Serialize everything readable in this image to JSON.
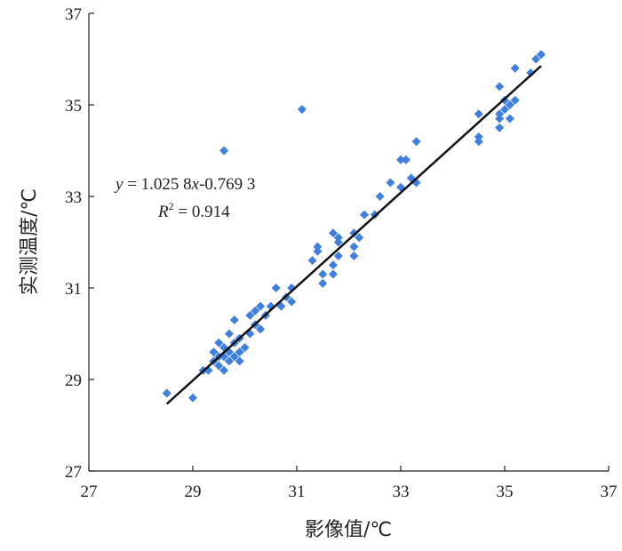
{
  "chart_data": {
    "type": "scatter",
    "xlabel": "影像值/℃",
    "ylabel": "实测温度/℃",
    "xlim": [
      27,
      37
    ],
    "ylim": [
      27,
      37
    ],
    "x_ticks": [
      "27",
      "29",
      "31",
      "33",
      "35",
      "37"
    ],
    "y_ticks": [
      "27",
      "29",
      "31",
      "33",
      "35",
      "37"
    ],
    "grid": false,
    "marker_color": "#3f7fe0",
    "marker": "diamond",
    "points": [
      [
        28.5,
        28.7
      ],
      [
        29.0,
        28.6
      ],
      [
        29.2,
        29.2
      ],
      [
        29.3,
        29.2
      ],
      [
        29.4,
        29.4
      ],
      [
        29.4,
        29.6
      ],
      [
        29.5,
        29.3
      ],
      [
        29.5,
        29.5
      ],
      [
        29.6,
        29.2
      ],
      [
        29.6,
        29.5
      ],
      [
        29.7,
        29.4
      ],
      [
        29.7,
        29.6
      ],
      [
        29.8,
        29.5
      ],
      [
        29.8,
        29.8
      ],
      [
        29.9,
        29.6
      ],
      [
        29.9,
        29.9
      ],
      [
        30.0,
        29.7
      ],
      [
        30.1,
        30.0
      ],
      [
        30.1,
        30.4
      ],
      [
        30.2,
        30.2
      ],
      [
        30.2,
        30.5
      ],
      [
        30.3,
        30.1
      ],
      [
        30.3,
        30.6
      ],
      [
        30.4,
        30.4
      ],
      [
        30.5,
        30.6
      ],
      [
        29.7,
        30.0
      ],
      [
        29.8,
        30.3
      ],
      [
        29.5,
        29.8
      ],
      [
        29.6,
        29.7
      ],
      [
        29.9,
        29.4
      ],
      [
        30.6,
        31.0
      ],
      [
        30.8,
        30.8
      ],
      [
        30.9,
        31.0
      ],
      [
        30.9,
        30.7
      ],
      [
        30.7,
        30.6
      ],
      [
        31.3,
        31.6
      ],
      [
        31.4,
        31.8
      ],
      [
        31.4,
        31.9
      ],
      [
        31.5,
        31.1
      ],
      [
        31.5,
        31.3
      ],
      [
        31.7,
        31.3
      ],
      [
        31.7,
        31.5
      ],
      [
        31.7,
        32.2
      ],
      [
        31.8,
        31.7
      ],
      [
        31.8,
        32.0
      ],
      [
        31.8,
        32.1
      ],
      [
        32.1,
        31.7
      ],
      [
        32.1,
        31.9
      ],
      [
        32.1,
        32.2
      ],
      [
        32.2,
        32.1
      ],
      [
        32.3,
        32.6
      ],
      [
        32.5,
        32.6
      ],
      [
        32.6,
        33.0
      ],
      [
        32.8,
        33.3
      ],
      [
        33.0,
        33.2
      ],
      [
        33.0,
        33.8
      ],
      [
        33.1,
        33.8
      ],
      [
        33.2,
        33.4
      ],
      [
        33.3,
        33.3
      ],
      [
        33.3,
        34.2
      ],
      [
        34.5,
        34.2
      ],
      [
        34.5,
        34.3
      ],
      [
        34.5,
        34.8
      ],
      [
        34.9,
        34.5
      ],
      [
        34.9,
        34.7
      ],
      [
        34.9,
        34.8
      ],
      [
        34.9,
        35.4
      ],
      [
        35.0,
        34.9
      ],
      [
        35.0,
        35.1
      ],
      [
        35.1,
        34.7
      ],
      [
        35.1,
        35.0
      ],
      [
        35.2,
        35.1
      ],
      [
        35.2,
        35.8
      ],
      [
        35.5,
        35.7
      ],
      [
        35.6,
        36.0
      ],
      [
        35.7,
        36.1
      ],
      [
        29.6,
        34.0
      ],
      [
        31.1,
        34.9
      ]
    ],
    "fit_line": {
      "slope": 1.0258,
      "intercept": -0.7693,
      "x_range": [
        28.5,
        35.7
      ]
    },
    "annotations": {
      "equation": "y = 1.025 8x-0.769 3",
      "r_squared": "R2 = 0.914"
    }
  }
}
